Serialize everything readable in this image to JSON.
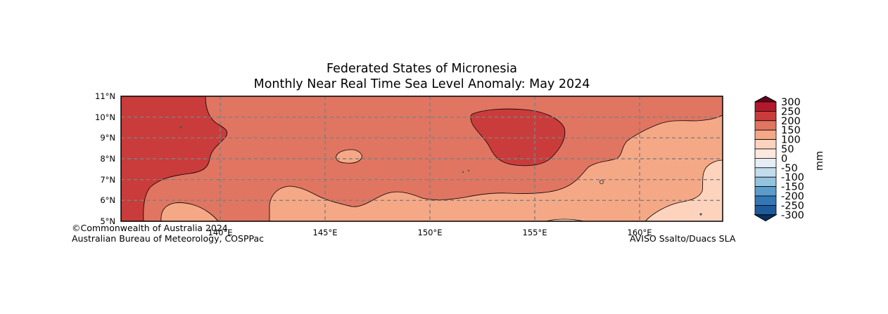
{
  "title": {
    "line1": "Federated States of Micronesia",
    "line2": "Monthly Near Real Time Sea Level Anomaly: May 2024"
  },
  "map": {
    "lat_labels": [
      "11°N",
      "10°N",
      "9°N",
      "8°N",
      "7°N",
      "6°N",
      "5°N"
    ],
    "lon_labels": [
      "140°E",
      "145°E",
      "150°E",
      "155°E",
      "160°E"
    ],
    "gridlines": "dashed grey",
    "regions": [
      {
        "level": "200-250",
        "color": "#c93c3b"
      },
      {
        "level": "150-200",
        "color": "#e07561"
      },
      {
        "level": "100-150",
        "color": "#f5a886"
      },
      {
        "level": "50-100",
        "color": "#fdd3bd"
      }
    ]
  },
  "colorbar": {
    "unit": "mm",
    "ticks": [
      "300",
      "250",
      "200",
      "150",
      "100",
      "50",
      "0",
      "-50",
      "-100",
      "-150",
      "-200",
      "-250",
      "-300"
    ],
    "colors": [
      "#67001f",
      "#b2182b",
      "#c93c3b",
      "#e07561",
      "#f5a886",
      "#fdd3bd",
      "#fbe8df",
      "#e6eef5",
      "#c3dcec",
      "#93c3df",
      "#5a9cca",
      "#3477b6",
      "#1f5b9a",
      "#053061"
    ]
  },
  "credits": {
    "left_line1": "©Commonwealth of Australia 2024",
    "left_line2": "Australian Bureau of Meteorology, COSPPac",
    "right": "AVISO Ssalto/Duacs SLA"
  }
}
